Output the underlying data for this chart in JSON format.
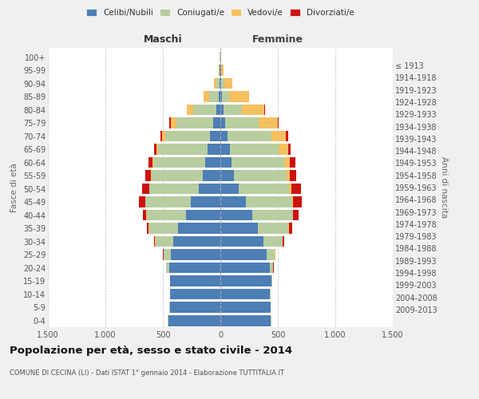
{
  "age_groups": [
    "0-4",
    "5-9",
    "10-14",
    "15-19",
    "20-24",
    "25-29",
    "30-34",
    "35-39",
    "40-44",
    "45-49",
    "50-54",
    "55-59",
    "60-64",
    "65-69",
    "70-74",
    "75-79",
    "80-84",
    "85-89",
    "90-94",
    "95-99",
    "100+"
  ],
  "birth_years": [
    "2009-2013",
    "2004-2008",
    "1999-2003",
    "1994-1998",
    "1989-1993",
    "1984-1988",
    "1979-1983",
    "1974-1978",
    "1969-1973",
    "1964-1968",
    "1959-1963",
    "1954-1958",
    "1949-1953",
    "1944-1948",
    "1939-1943",
    "1934-1938",
    "1929-1933",
    "1924-1928",
    "1919-1923",
    "1914-1918",
    "≤ 1913"
  ],
  "maschi": {
    "celibi": [
      450,
      440,
      435,
      435,
      445,
      430,
      410,
      370,
      300,
      260,
      185,
      155,
      130,
      110,
      90,
      60,
      35,
      15,
      8,
      5,
      3
    ],
    "coniugati": [
      5,
      5,
      5,
      5,
      25,
      65,
      155,
      250,
      340,
      390,
      430,
      445,
      450,
      430,
      390,
      325,
      200,
      80,
      30,
      5,
      2
    ],
    "vedovi": [
      0,
      0,
      0,
      0,
      1,
      1,
      2,
      2,
      3,
      3,
      5,
      5,
      10,
      15,
      28,
      48,
      55,
      50,
      20,
      5,
      2
    ],
    "divorziati": [
      0,
      0,
      0,
      0,
      2,
      5,
      10,
      18,
      28,
      55,
      58,
      48,
      38,
      18,
      14,
      8,
      5,
      4,
      0,
      0,
      0
    ]
  },
  "femmine": {
    "nubili": [
      440,
      435,
      430,
      445,
      430,
      400,
      375,
      325,
      275,
      225,
      160,
      120,
      95,
      80,
      65,
      45,
      28,
      12,
      8,
      4,
      2
    ],
    "coniugate": [
      5,
      5,
      5,
      5,
      30,
      75,
      165,
      268,
      355,
      398,
      440,
      455,
      460,
      430,
      380,
      285,
      160,
      65,
      25,
      5,
      2
    ],
    "vedove": [
      0,
      0,
      0,
      0,
      1,
      1,
      2,
      3,
      5,
      8,
      18,
      28,
      48,
      80,
      125,
      170,
      195,
      170,
      68,
      20,
      5
    ],
    "divorziate": [
      0,
      0,
      0,
      0,
      2,
      5,
      12,
      28,
      48,
      75,
      80,
      58,
      48,
      22,
      18,
      10,
      5,
      5,
      0,
      0,
      0
    ]
  },
  "colors": {
    "celibi_nubili": "#4d7eb5",
    "coniugati": "#b8cda0",
    "vedovi": "#f5c060",
    "divorziati": "#cc1111"
  },
  "title": "Popolazione per età, sesso e stato civile - 2014",
  "subtitle": "COMUNE DI CECINA (LI) - Dati ISTAT 1° gennaio 2014 - Elaborazione TUTTITALIA.IT",
  "xlabel_left": "Maschi",
  "xlabel_right": "Femmine",
  "ylabel_left": "Fasce di età",
  "ylabel_right": "Anni di nascita",
  "xlim": 1500,
  "bg_color": "#f0f0f0",
  "plot_bg_color": "#ffffff",
  "grid_color": "#bbbbbb"
}
